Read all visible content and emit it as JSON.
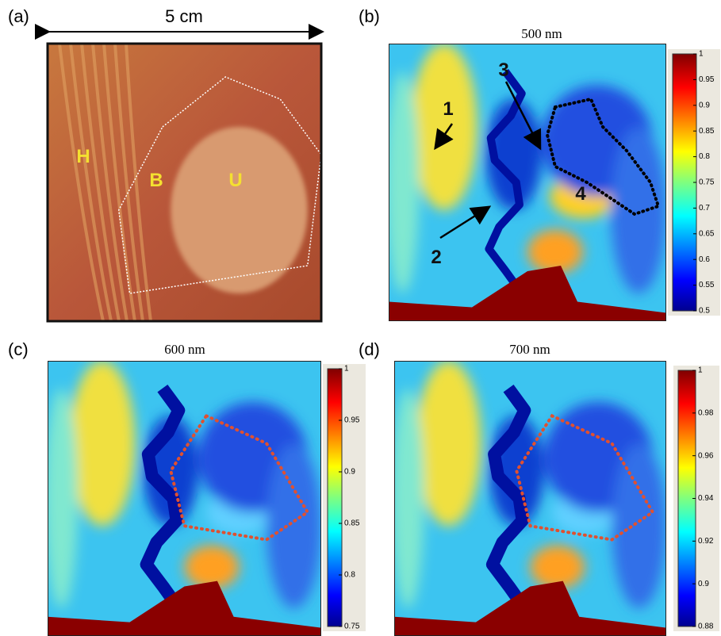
{
  "panels": [
    {
      "label": "(a)",
      "scale_label": "5 cm",
      "annotations": [
        "H",
        "B",
        "U"
      ]
    },
    {
      "label": "(b)",
      "title": "500 nm",
      "annotations": [
        "1",
        "2",
        "3",
        "4"
      ],
      "colorbar": {
        "lim": [
          0.5,
          1
        ],
        "ticks": [
          0.5,
          0.55,
          0.6,
          0.65,
          0.7,
          0.75,
          0.8,
          0.85,
          0.9,
          0.95,
          1
        ]
      }
    },
    {
      "label": "(c)",
      "title": "600 nm",
      "colorbar": {
        "lim": [
          0.75,
          1
        ],
        "ticks": [
          0.75,
          0.8,
          0.85,
          0.9,
          0.95,
          1
        ]
      }
    },
    {
      "label": "(d)",
      "title": "700 nm",
      "colorbar": {
        "lim": [
          0.88,
          1
        ],
        "ticks": [
          0.88,
          0.9,
          0.92,
          0.94,
          0.96,
          0.98,
          1
        ]
      }
    }
  ]
}
